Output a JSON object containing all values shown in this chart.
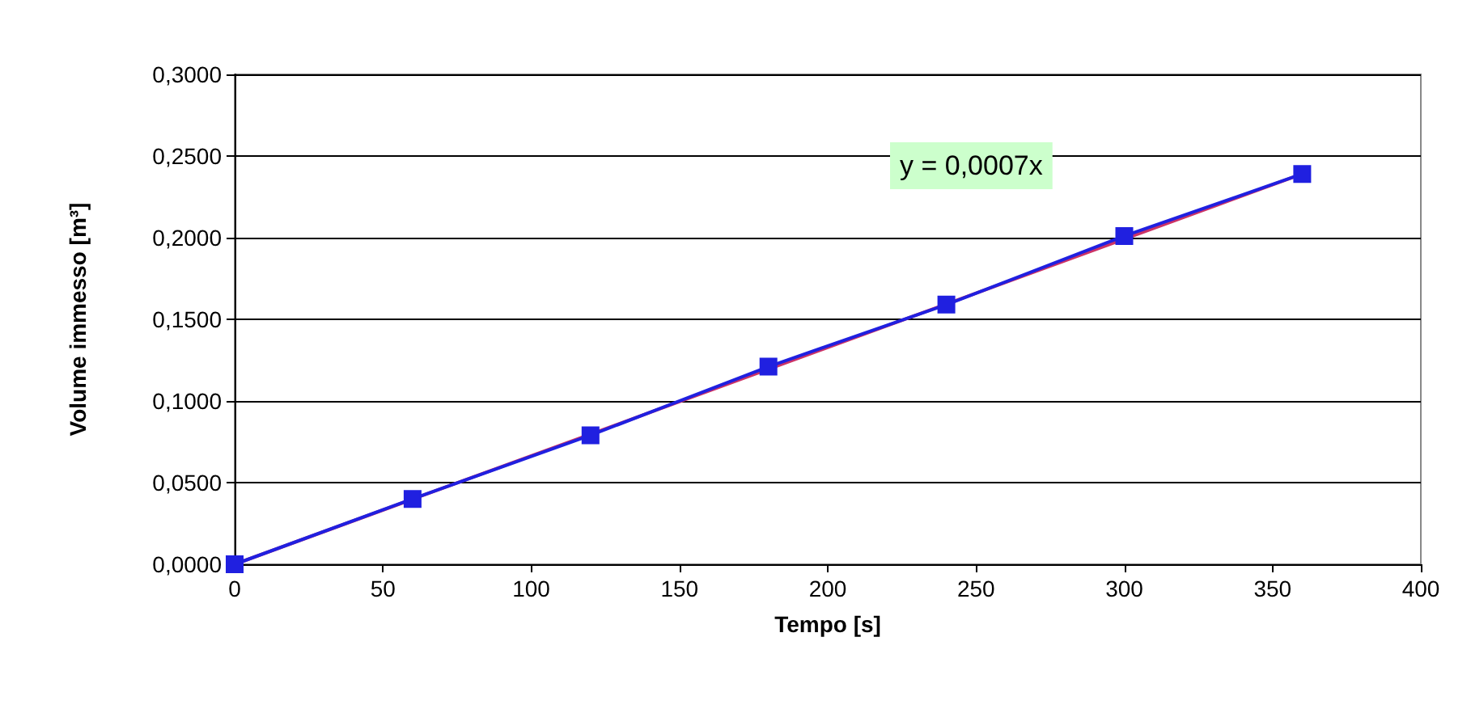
{
  "chart_data": {
    "type": "line",
    "xlabel": "Tempo [s]",
    "ylabel": "Volume immesso [m³]",
    "annotations": [
      "y = 0,0007x"
    ],
    "series": [
      {
        "color": "#cc3366",
        "x": [
          0,
          360
        ],
        "values": [
          0,
          0.239
        ],
        "marker": "none"
      },
      {
        "color": "#2020e0",
        "x": [
          0,
          60,
          120,
          180,
          240,
          300,
          360
        ],
        "values": [
          0,
          0.04,
          0.079,
          0.121,
          0.159,
          0.201,
          0.239
        ],
        "marker": "square"
      }
    ],
    "xlim": [
      0,
      400
    ],
    "xticks": [
      0,
      50,
      100,
      150,
      200,
      250,
      300,
      350,
      400
    ],
    "ylim": [
      0,
      0.3
    ],
    "yticks": [
      {
        "value": 0,
        "label": "0,0000"
      },
      {
        "value": 0.05,
        "label": "0,0500"
      },
      {
        "value": 0.1,
        "label": "0,1000"
      },
      {
        "value": 0.15,
        "label": "0,1500"
      },
      {
        "value": 0.2,
        "label": "0,2000"
      },
      {
        "value": 0.25,
        "label": "0,2500"
      },
      {
        "value": 0.3,
        "label": "0,3000"
      }
    ],
    "grid": "y",
    "line_style": "solid"
  }
}
